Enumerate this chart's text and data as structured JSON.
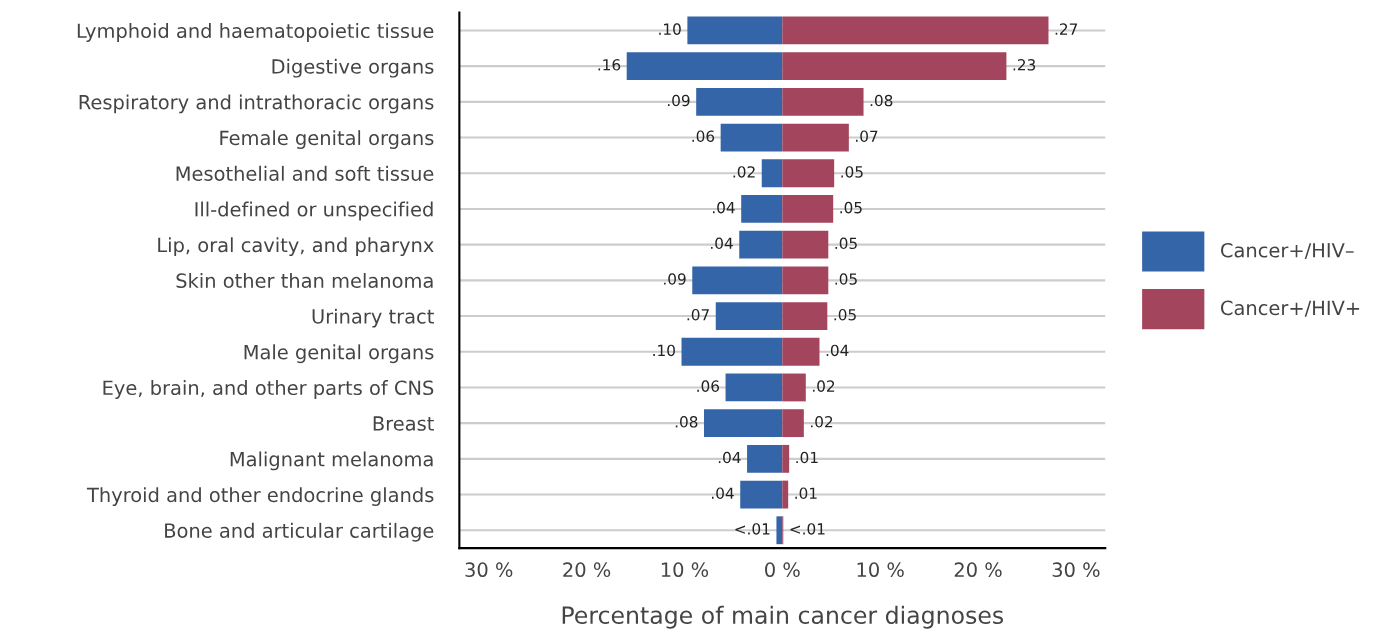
{
  "chart_data": {
    "type": "bar",
    "orientation": "horizontal",
    "xlabel": "Percentage of main cancer diagnoses",
    "categories": [
      "Lymphoid and haematopoietic tissue",
      "Digestive organs",
      "Respiratory and intrathoracic organs",
      "Female genital organs",
      "Mesothelial and soft tissue",
      "Ill-defined or unspecified",
      "Lip, oral cavity, and pharynx",
      "Skin other than melanoma",
      "Urinary tract",
      "Male genital organs",
      "Eye, brain, and other parts of CNS",
      "Breast",
      "Malignant melanoma",
      "Thyroid and other endocrine glands",
      "Bone and articular cartilage"
    ],
    "series": [
      {
        "name": "Cancer+/HIV–",
        "color": "#3465a8",
        "values": [
          -9.7,
          -15.9,
          -8.8,
          -6.3,
          -2.1,
          -4.2,
          -4.4,
          -9.2,
          -6.8,
          -10.3,
          -5.8,
          -8.0,
          -3.6,
          -4.3,
          -0.6
        ]
      },
      {
        "name": "Cancer+/HIV+",
        "color": "#a3455c",
        "values": [
          27.2,
          22.9,
          8.3,
          6.8,
          5.3,
          5.2,
          4.7,
          4.7,
          4.6,
          3.8,
          2.4,
          2.2,
          0.7,
          0.6,
          0.1
        ]
      }
    ],
    "annotations": [
      {
        "text": ".10",
        "x": -9.7,
        "y": "Lymphoid and haematopoietic tissue"
      },
      {
        "text": ".16",
        "x": -15.9,
        "y": "Digestive organs"
      },
      {
        "text": ".09",
        "x": -8.8,
        "y": "Respiratory and intrathoracic organs"
      },
      {
        "text": ".06",
        "x": -6.3,
        "y": "Female genital organs"
      },
      {
        "text": ".02",
        "x": -2.1,
        "y": "Mesothelial and soft tissue"
      },
      {
        "text": ".04",
        "x": -4.2,
        "y": "Ill-defined or unspecified"
      },
      {
        "text": ".04",
        "x": -4.4,
        "y": "Lip, oral cavity, and pharynx"
      },
      {
        "text": ".09",
        "x": -9.2,
        "y": "Skin other than melanoma"
      },
      {
        "text": ".07",
        "x": -6.8,
        "y": "Urinary tract"
      },
      {
        "text": ".10",
        "x": -10.3,
        "y": "Male genital organs"
      },
      {
        "text": ".06",
        "x": -5.8,
        "y": "Eye, brain, and other parts of CNS"
      },
      {
        "text": ".08",
        "x": -8.0,
        "y": "Breast"
      },
      {
        "text": ".04",
        "x": -3.6,
        "y": "Malignant melanoma"
      },
      {
        "text": ".04",
        "x": -4.3,
        "y": "Thyroid and other endocrine glands"
      },
      {
        "text": "<.01",
        "x": -0.6,
        "y": "Bone and articular cartilage"
      },
      {
        "text": ".27",
        "x": 27.2,
        "y": "Lymphoid and haematopoietic tissue"
      },
      {
        "text": ".23",
        "x": 22.9,
        "y": "Digestive organs"
      },
      {
        "text": ".08",
        "x": 8.3,
        "y": "Respiratory and intrathoracic organs"
      },
      {
        "text": ".07",
        "x": 6.8,
        "y": "Female genital organs"
      },
      {
        "text": ".05",
        "x": 5.3,
        "y": "Mesothelial and soft tissue"
      },
      {
        "text": ".05",
        "x": 5.2,
        "y": "Ill-defined or unspecified"
      },
      {
        "text": ".05",
        "x": 4.7,
        "y": "Lip, oral cavity, and pharynx"
      },
      {
        "text": ".05",
        "x": 4.7,
        "y": "Skin other than melanoma"
      },
      {
        "text": ".05",
        "x": 4.6,
        "y": "Urinary tract"
      },
      {
        "text": ".04",
        "x": 3.8,
        "y": "Male genital organs"
      },
      {
        "text": ".02",
        "x": 2.4,
        "y": "Eye, brain, and other parts of CNS"
      },
      {
        "text": ".02",
        "x": 2.2,
        "y": "Breast"
      },
      {
        "text": ".01",
        "x": 0.7,
        "y": "Malignant melanoma"
      },
      {
        "text": ".01",
        "x": 0.6,
        "y": "Thyroid and other endocrine glands"
      },
      {
        "text": "<.01",
        "x": 0.1,
        "y": "Bone and articular cartilage"
      }
    ],
    "xlim": [
      -33,
      33
    ],
    "xticks": [
      {
        "value": -30,
        "label": "30 %"
      },
      {
        "value": -20,
        "label": "20 %"
      },
      {
        "value": -10,
        "label": "10 %"
      },
      {
        "value": 0,
        "label": "0 %"
      },
      {
        "value": 10,
        "label": "10 %"
      },
      {
        "value": 20,
        "label": "20 %"
      },
      {
        "value": 30,
        "label": "30 %"
      }
    ],
    "grid": "y",
    "legend": "right",
    "stacked": true
  }
}
